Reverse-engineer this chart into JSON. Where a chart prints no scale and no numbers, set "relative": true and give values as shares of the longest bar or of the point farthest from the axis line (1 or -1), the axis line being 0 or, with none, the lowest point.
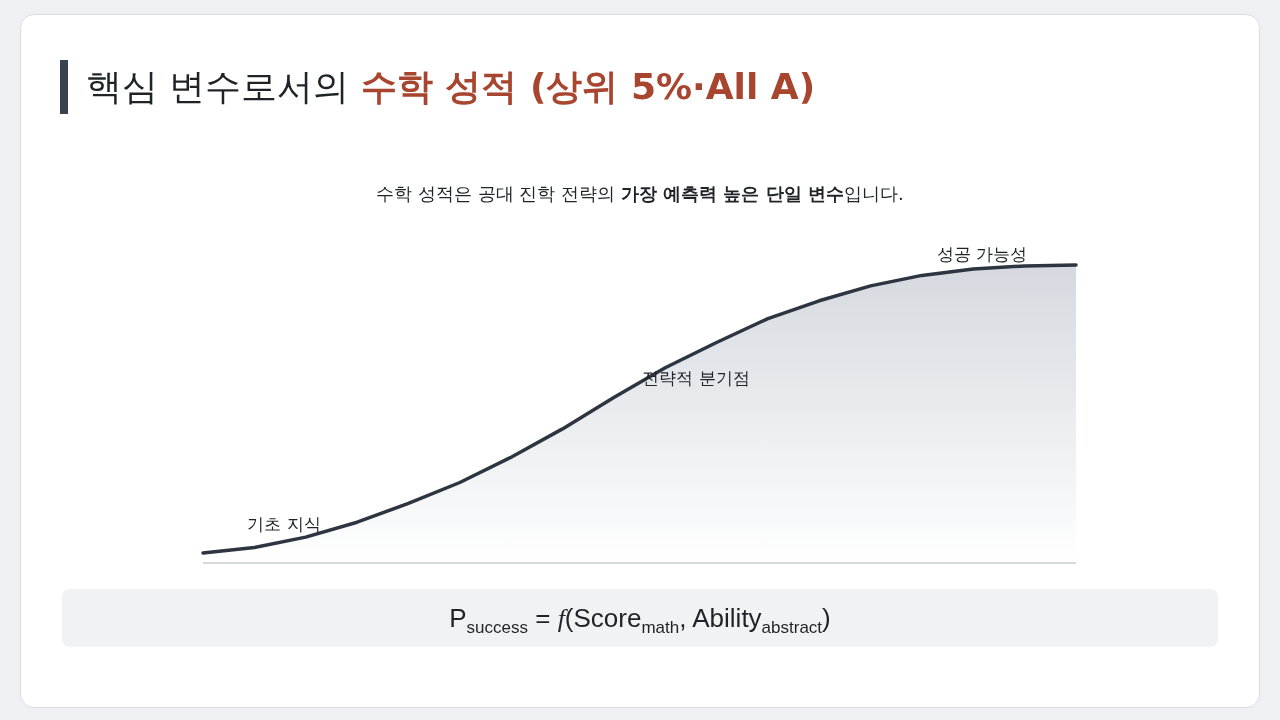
{
  "chart_data": {
    "type": "area",
    "title": "핵심 변수로서의 **수학 성적 (상위 5%·All A)**",
    "subtitle": "수학 성적은 공대 진학 전략의 **가장 예측력 높은 단일 변수**입니다.",
    "relative": true,
    "categories": [
      null,
      null,
      null,
      null,
      null,
      null,
      null,
      null,
      null,
      null,
      null,
      null,
      null,
      null,
      null,
      null,
      null,
      null
    ],
    "series": [
      {
        "color": "#2d3540",
        "values": [
          0.034,
          0.052,
          0.087,
          0.137,
          0.2,
          0.27,
          0.355,
          0.45,
          0.555,
          0.655,
          0.74,
          0.82,
          0.88,
          0.93,
          0.965,
          0.987,
          0.997,
          1.0
        ]
      }
    ],
    "annotations": [
      "기초 지식",
      "전략적 분기점",
      "성공 가능성",
      "P$_{success}$ = *f*(Score$_{math}$, Ability$_{abstract}$)"
    ]
  }
}
